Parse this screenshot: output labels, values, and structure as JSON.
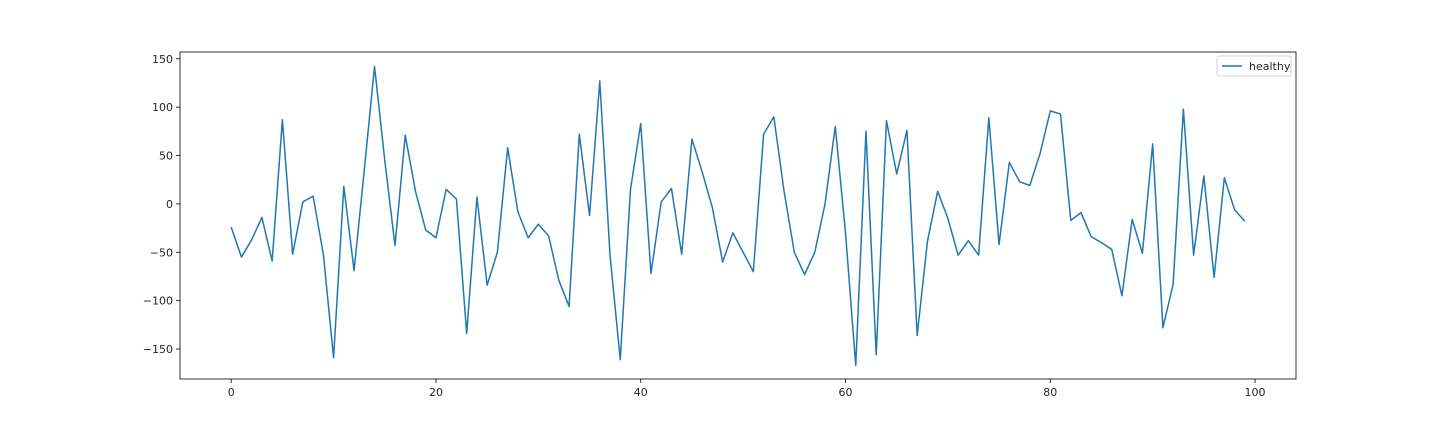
{
  "chart_data": {
    "type": "line",
    "title": "",
    "xlabel": "",
    "ylabel": "",
    "xlim": [
      -5,
      104
    ],
    "ylim": [
      -181,
      157
    ],
    "xticks": [
      0,
      20,
      40,
      60,
      80,
      100
    ],
    "yticks": [
      -150,
      -100,
      -50,
      0,
      50,
      100,
      150
    ],
    "grid": false,
    "legend_position": "top-right",
    "series": [
      {
        "name": "healthy",
        "color": "#1f77b4",
        "x": [
          0,
          1,
          2,
          3,
          4,
          5,
          6,
          7,
          8,
          9,
          10,
          11,
          12,
          13,
          14,
          15,
          16,
          17,
          18,
          19,
          20,
          21,
          22,
          23,
          24,
          25,
          26,
          27,
          28,
          29,
          30,
          31,
          32,
          33,
          34,
          35,
          36,
          37,
          38,
          39,
          40,
          41,
          42,
          43,
          44,
          45,
          46,
          47,
          48,
          49,
          50,
          51,
          52,
          53,
          54,
          55,
          56,
          57,
          58,
          59,
          60,
          61,
          62,
          63,
          64,
          65,
          66,
          67,
          68,
          69,
          70,
          71,
          72,
          73,
          74,
          75,
          76,
          77,
          78,
          79,
          80,
          81,
          82,
          83,
          84,
          85,
          86,
          87,
          88,
          89,
          90,
          91,
          92,
          93,
          94,
          95,
          96,
          97,
          98,
          99
        ],
        "y": [
          -24,
          -55,
          -37,
          -14,
          -59,
          87,
          -52,
          2,
          8,
          -52,
          -159,
          18,
          -69,
          35,
          142,
          45,
          -43,
          71,
          13,
          -27,
          -35,
          15,
          5,
          -134,
          7,
          -84,
          -50,
          58,
          -8,
          -35,
          -21,
          -33,
          -79,
          -106,
          72,
          -12,
          127,
          -53,
          -161,
          15,
          83,
          -72,
          2,
          16,
          -52,
          67,
          33,
          -4,
          -60,
          -30,
          -50,
          -70,
          72,
          90,
          13,
          -50,
          -73,
          -50,
          0,
          80,
          -30,
          -167,
          75,
          -156,
          86,
          31,
          76,
          -136,
          -39,
          13,
          -15,
          -53,
          -38,
          -53,
          89,
          -42,
          43,
          23,
          19,
          52,
          96,
          93,
          -17,
          -9,
          -34,
          -40,
          -47,
          -95,
          -16,
          -51,
          62,
          -128,
          -83,
          98,
          -53,
          29,
          -76,
          27,
          -6,
          -18
        ]
      }
    ]
  }
}
